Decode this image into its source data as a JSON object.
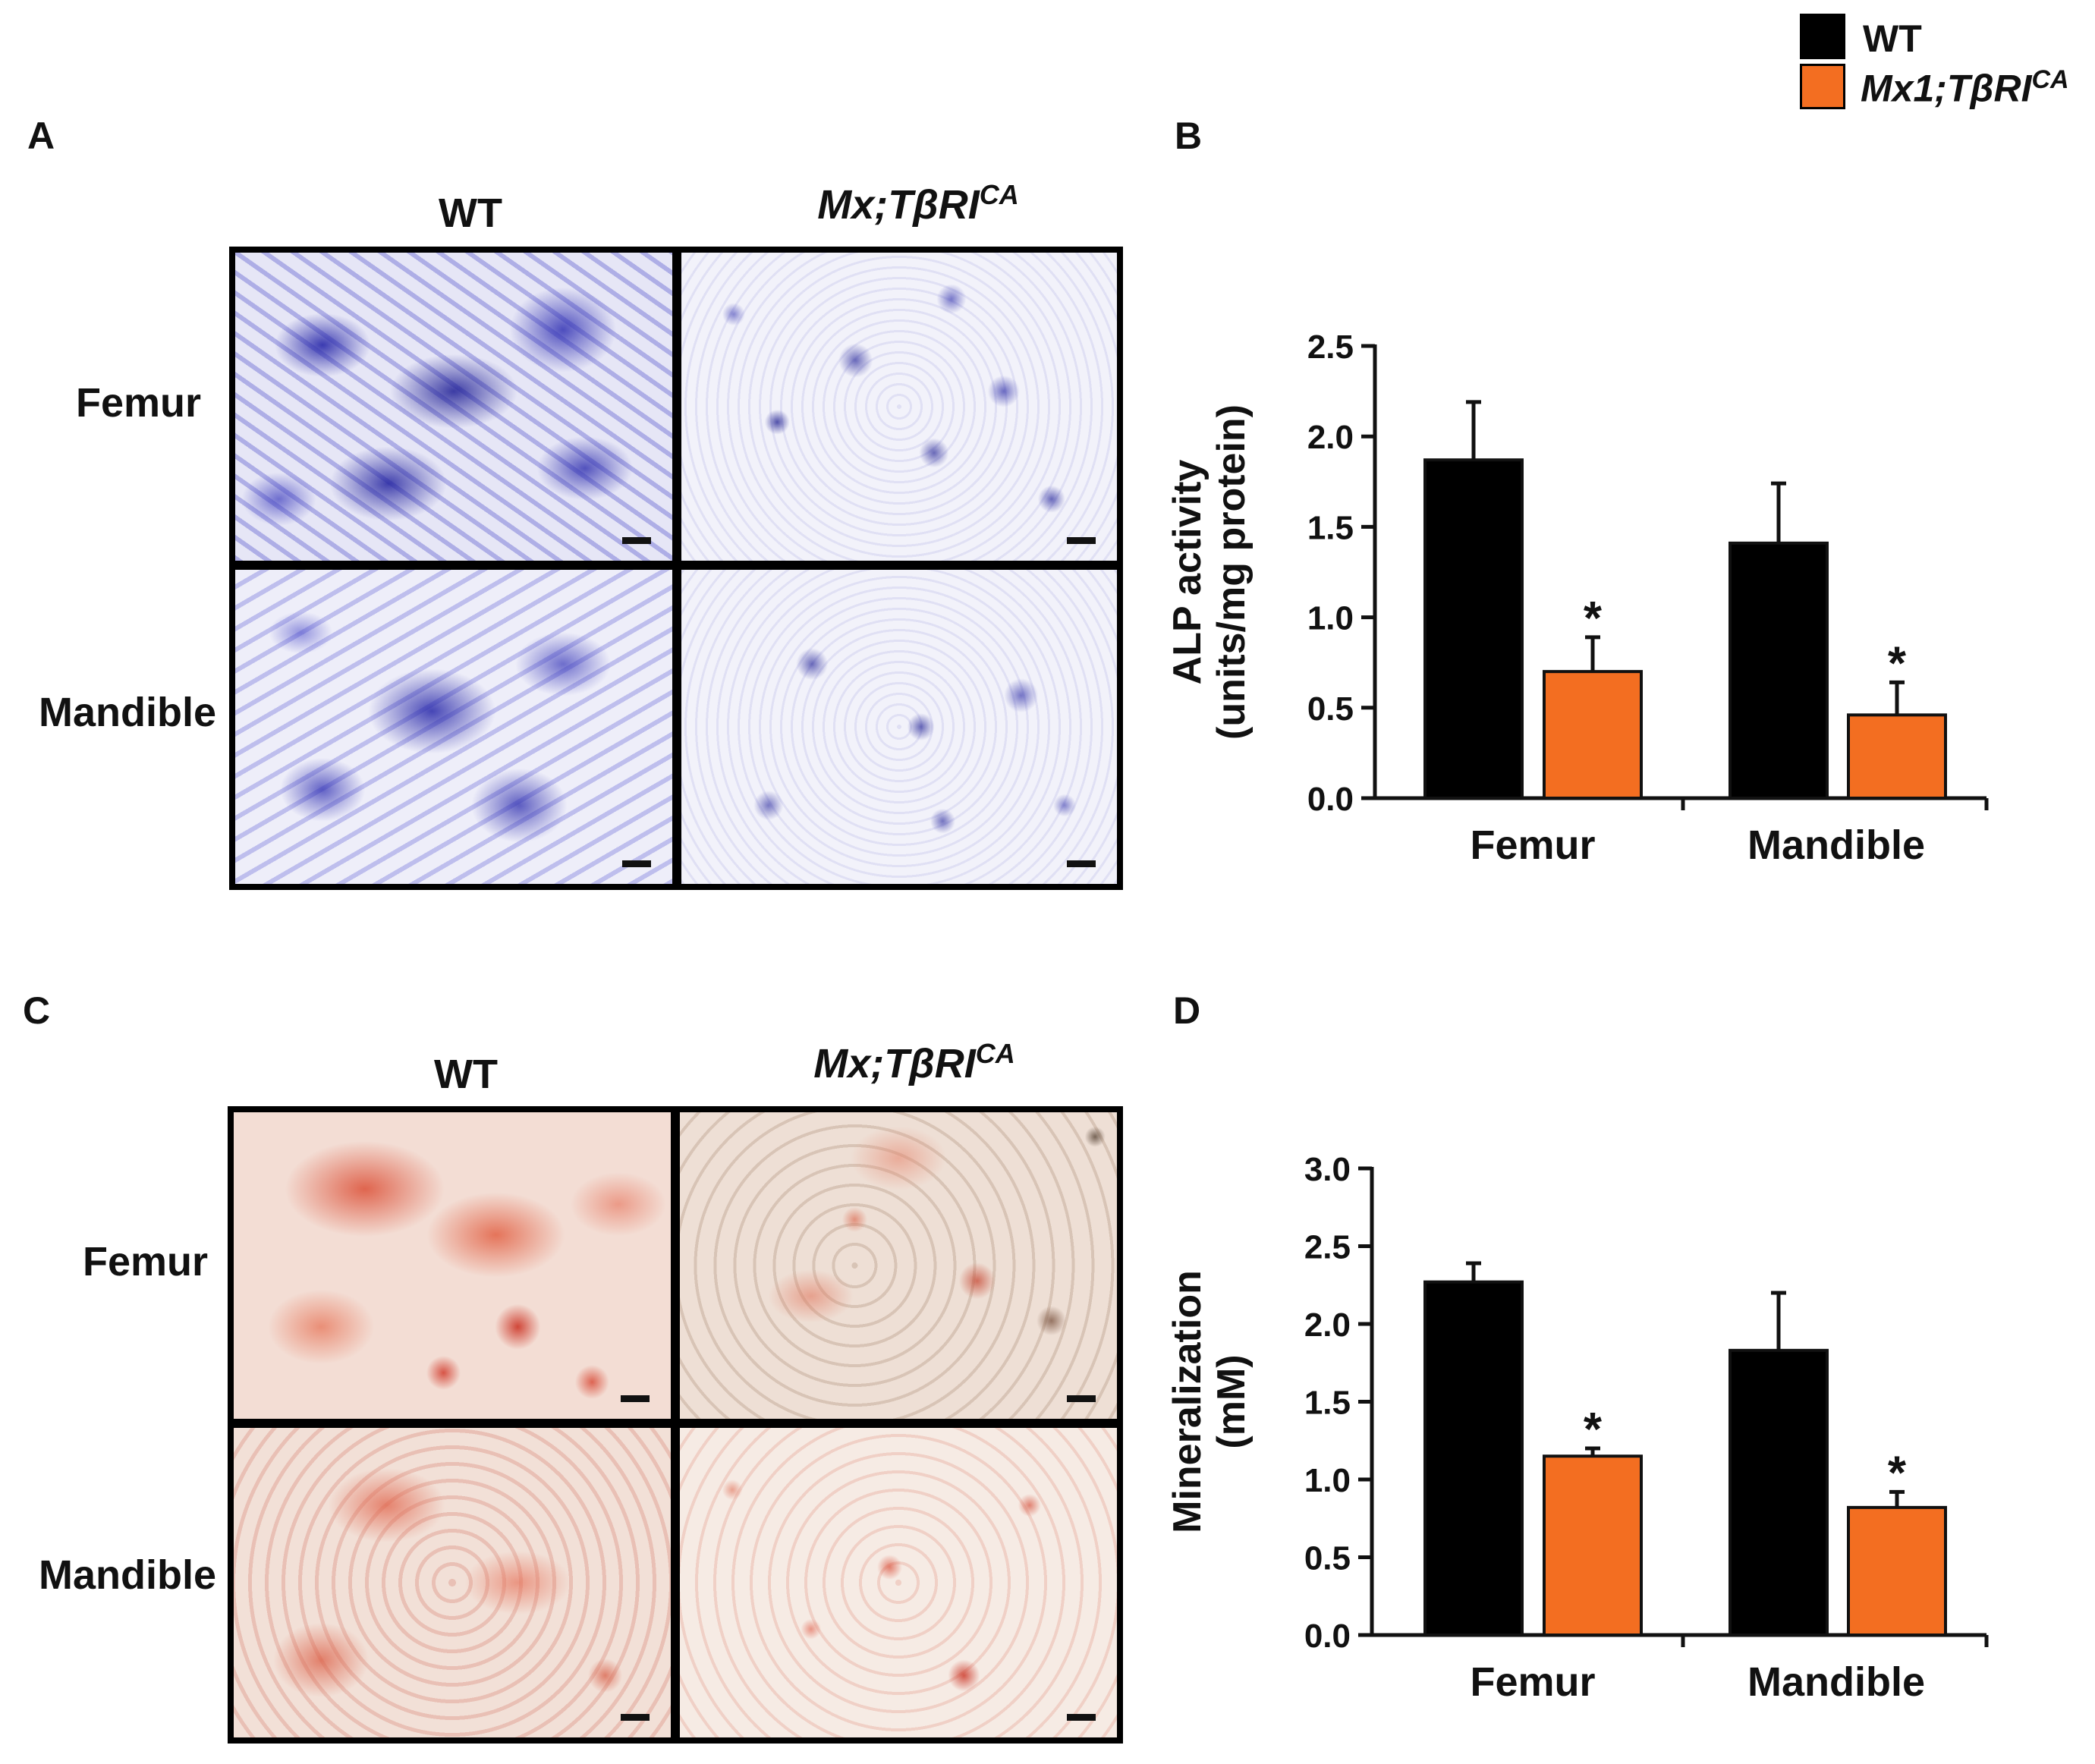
{
  "legend": {
    "wt_label": "WT",
    "mx1_prefix": "Mx1;TβRI",
    "mx1_sup": "CA",
    "colors": {
      "wt": "#000000",
      "mx": "#f36e21"
    }
  },
  "panel_a": {
    "letter": "A",
    "col_wt": "WT",
    "col_mx_prefix": "Mx;TβRI",
    "col_mx_sup": "CA",
    "row_femur": "Femur",
    "row_mandible": "Mandible"
  },
  "panel_b": {
    "letter": "B"
  },
  "panel_c": {
    "letter": "C",
    "col_wt": "WT",
    "col_mx_prefix": "Mx;TβRI",
    "col_mx_sup": "CA",
    "row_femur": "Femur",
    "row_mandible": "Mandible"
  },
  "panel_d": {
    "letter": "D"
  },
  "chart_data": [
    {
      "type": "bar",
      "panel": "B",
      "categories": [
        "Femur",
        "Mandible"
      ],
      "series": [
        {
          "name": "WT",
          "values": [
            1.87,
            1.41
          ],
          "errors": [
            0.32,
            0.33
          ],
          "color": "#000000"
        },
        {
          "name": "Mx1;TβRICA",
          "values": [
            0.7,
            0.46
          ],
          "errors": [
            0.19,
            0.18
          ],
          "color": "#f36e21"
        }
      ],
      "significance": [
        [
          false,
          true
        ],
        [
          false,
          true
        ]
      ],
      "ylabel_line1": "ALP activity",
      "ylabel_line2": "(units/mg protein)",
      "ylim": [
        0,
        2.5
      ],
      "yticks": [
        0.0,
        0.5,
        1.0,
        1.5,
        2.0,
        2.5
      ],
      "ytick_labels": [
        "0.0",
        "0.5",
        "1.0",
        "1.5",
        "2.0",
        "2.5"
      ],
      "star": "*"
    },
    {
      "type": "bar",
      "panel": "D",
      "categories": [
        "Femur",
        "Mandible"
      ],
      "series": [
        {
          "name": "WT",
          "values": [
            2.27,
            1.83
          ],
          "errors": [
            0.12,
            0.37
          ],
          "color": "#000000"
        },
        {
          "name": "Mx1;TβRICA",
          "values": [
            1.15,
            0.82
          ],
          "errors": [
            0.05,
            0.1
          ],
          "color": "#f36e21"
        }
      ],
      "significance": [
        [
          false,
          true
        ],
        [
          false,
          true
        ]
      ],
      "ylabel_line1": "Mineralization",
      "ylabel_line2": "(mM)",
      "ylim": [
        0,
        3.0
      ],
      "yticks": [
        0.0,
        0.5,
        1.0,
        1.5,
        2.0,
        2.5,
        3.0
      ],
      "ytick_labels": [
        "0.0",
        "0.5",
        "1.0",
        "1.5",
        "2.0",
        "2.5",
        "3.0"
      ],
      "star": "*"
    }
  ]
}
